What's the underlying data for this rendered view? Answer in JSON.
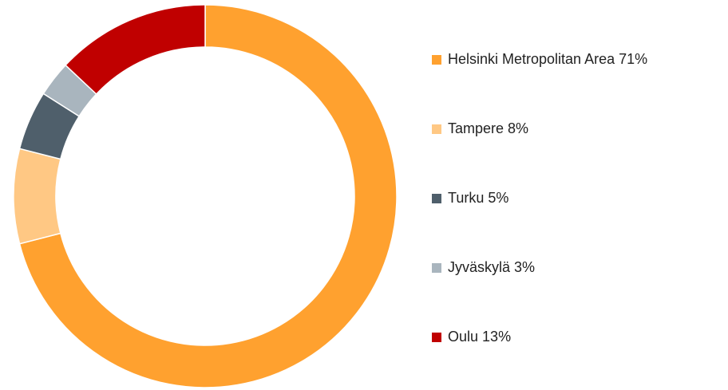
{
  "chart_data": {
    "type": "pie",
    "categories": [
      "Helsinki Metropolitan Area",
      "Tampere",
      "Turku",
      "Jyväskylä",
      "Oulu"
    ],
    "values": [
      71,
      8,
      5,
      3,
      13
    ],
    "value_labels": [
      "71%",
      "8%",
      "5%",
      "3%",
      "13%"
    ],
    "colors": [
      "#FFA12F",
      "#FFC884",
      "#4F5F6B",
      "#A9B5BE",
      "#C00000"
    ],
    "donut": true,
    "legend": "right"
  }
}
